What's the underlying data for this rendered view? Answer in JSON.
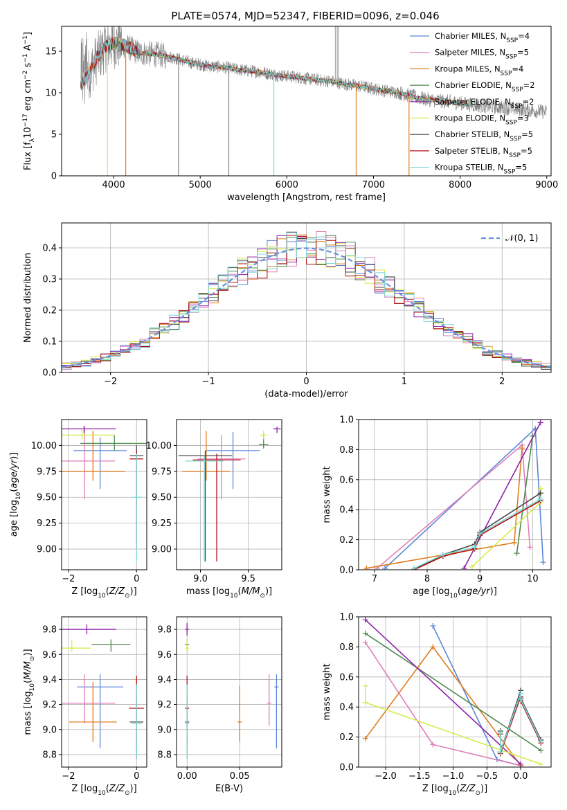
{
  "title": "PLATE=0574, MJD=52347, FIBERID=0096, z=0.046",
  "colors": {
    "chabrier_miles": "#5b86d8",
    "salpeter_miles": "#e07fb8",
    "kroupa_miles": "#e07b1f",
    "chabrier_elodie": "#4f8a4f",
    "salpeter_elodie": "#8e1fa8",
    "kroupa_elodie": "#d4ec4a",
    "chabrier_stelib": "#444444",
    "salpeter_stelib": "#b01010",
    "kroupa_stelib": "#7fd8d8",
    "data": "#808080",
    "normal_curve": "#6a8fe0"
  },
  "chart_data": [
    {
      "id": "spectrum",
      "type": "line",
      "xlabel": "wavelength [Angstrom, rest frame]",
      "ylabel": "Flux [f",
      "ylabel_parts": [
        "Flux [f",
        "λ",
        "10",
        "−17",
        " erg cm",
        "−2",
        " s",
        "−1",
        " A",
        "−1",
        "]"
      ],
      "xlim": [
        3400,
        9050
      ],
      "ylim": [
        0,
        18
      ],
      "xticks": [
        "4000",
        "5000",
        "6000",
        "7000",
        "8000",
        "9000"
      ],
      "xtick_values": [
        4000,
        5000,
        6000,
        7000,
        8000,
        9000
      ],
      "yticks": [
        "0",
        "5",
        "10",
        "15"
      ],
      "ytick_values": [
        0,
        5,
        10,
        15
      ],
      "grid": false,
      "legend_position": "top-right",
      "legend": [
        {
          "label": "Chabrier MILES, N",
          "sub": "SSP",
          "value": "=4",
          "color_key": "chabrier_miles"
        },
        {
          "label": "Salpeter MILES, N",
          "sub": "SSP",
          "value": "=5",
          "color_key": "salpeter_miles"
        },
        {
          "label": "Kroupa MILES, N",
          "sub": "SSP",
          "value": "=4",
          "color_key": "kroupa_miles"
        },
        {
          "label": "Chabrier ELODIE, N",
          "sub": "SSP",
          "value": "=2",
          "color_key": "chabrier_elodie"
        },
        {
          "label": "Salpeter ELODIE, N",
          "sub": "SSP",
          "value": "=2",
          "color_key": "salpeter_elodie"
        },
        {
          "label": "Kroupa ELODIE, N",
          "sub": "SSP",
          "value": "=3",
          "color_key": "kroupa_elodie"
        },
        {
          "label": "Chabrier STELIB, N",
          "sub": "SSP",
          "value": "=5",
          "color_key": "chabrier_stelib"
        },
        {
          "label": "Salpeter STELIB, N",
          "sub": "SSP",
          "value": "=5",
          "color_key": "salpeter_stelib"
        },
        {
          "label": "Kroupa STELIB, N",
          "sub": "SSP",
          "value": "=5",
          "color_key": "kroupa_stelib"
        }
      ],
      "continuum": {
        "x": [
          3620,
          3700,
          3800,
          3900,
          4000,
          4100,
          4200,
          4300,
          4500,
          4700,
          4900,
          5100,
          5300,
          5500,
          5700,
          5900,
          6100,
          6300,
          6500,
          6700,
          6900,
          7100,
          7300,
          7500,
          7700,
          7900,
          8100,
          8300,
          8500,
          8700,
          9000
        ],
        "y": [
          11.0,
          12.0,
          14.0,
          15.5,
          16.0,
          15.8,
          15.3,
          14.8,
          14.6,
          14.2,
          13.6,
          13.2,
          13.0,
          12.7,
          12.5,
          12.1,
          11.9,
          11.6,
          11.4,
          11.0,
          10.7,
          10.3,
          10.0,
          9.4,
          9.1,
          8.9,
          8.6,
          8.4,
          8.2,
          8.0,
          7.7
        ]
      },
      "absorption_features": [
        {
          "x": 3930,
          "y_min": 0.0,
          "color_key": "kroupa_elodie"
        },
        {
          "x": 4140,
          "y_min": 0.0,
          "color_key": "kroupa_miles"
        },
        {
          "x": 4750,
          "y_min": 0.0,
          "color_key": "data"
        },
        {
          "x": 5330,
          "y_min": 0.0,
          "color_key": "data"
        },
        {
          "x": 5850,
          "y_min": 0.0,
          "color_key": "kroupa_stelib"
        },
        {
          "x": 6800,
          "y_min": 0.0,
          "color_key": "kroupa_miles"
        },
        {
          "x": 7410,
          "y_min": 0.0,
          "color_key": "kroupa_miles"
        }
      ],
      "emission_features": [
        {
          "x": 6563,
          "y_max": 18.0
        },
        {
          "x": 6590,
          "y_max": 18.0
        }
      ]
    },
    {
      "id": "residuals",
      "type": "histogram",
      "xlabel": "(data-model)/error",
      "ylabel": "Normed distribution",
      "xlim": [
        -2.5,
        2.5
      ],
      "ylim": [
        0,
        0.48
      ],
      "xticks": [
        "−2",
        "−1",
        "0",
        "1",
        "2"
      ],
      "xtick_values": [
        -2,
        -1,
        0,
        1,
        2
      ],
      "yticks": [
        "0.0",
        "0.1",
        "0.2",
        "0.3",
        "0.4"
      ],
      "ytick_values": [
        0,
        0.1,
        0.2,
        0.3,
        0.4
      ],
      "grid": true,
      "legend_position": "top-right",
      "legend": [
        {
          "label": "𝒩(0, 1)",
          "color_key": "normal_curve",
          "style": "dashed"
        }
      ],
      "bin_width": 0.1,
      "bin_start": -2.5
    },
    {
      "id": "age_vs_Z",
      "type": "errorbar",
      "xlabel": "Z [log",
      "ylabel": "age  [log",
      "xlim": [
        -2.2,
        0.3
      ],
      "ylim": [
        8.8,
        10.25
      ],
      "xticks": [
        "−2",
        "0"
      ],
      "xtick_values": [
        -2,
        0
      ],
      "yticks": [
        "9.00",
        "9.25",
        "9.50",
        "9.75",
        "10.00"
      ],
      "ytick_values": [
        9.0,
        9.25,
        9.5,
        9.75,
        10.0
      ],
      "grid": true,
      "points": [
        {
          "x": -1.07,
          "xerr": 0.78,
          "y": 9.95,
          "y_lo": 9.58,
          "y_hi": 10.08,
          "color_key": "chabrier_miles"
        },
        {
          "x": -1.53,
          "xerr": 0.9,
          "y": 9.85,
          "y_lo": 9.48,
          "y_hi": 10.18,
          "color_key": "salpeter_miles"
        },
        {
          "x": -1.28,
          "xerr": 0.95,
          "y": 9.75,
          "y_lo": 9.66,
          "y_hi": 10.14,
          "color_key": "kroupa_miles"
        },
        {
          "x": -0.65,
          "xerr": 1.0,
          "y": 10.02,
          "y_lo": 9.95,
          "y_hi": 10.1,
          "color_key": "chabrier_elodie"
        },
        {
          "x": -1.54,
          "xerr": 0.93,
          "y": 10.16,
          "y_lo": 10.12,
          "y_hi": 10.19,
          "color_key": "salpeter_elodie"
        },
        {
          "x": -1.6,
          "xerr": 0.95,
          "y": 10.1,
          "y_lo": 10.06,
          "y_hi": 10.15,
          "color_key": "kroupa_elodie"
        },
        {
          "x": 0.0,
          "xerr": 0.2,
          "y": 9.9,
          "y_lo": 9.4,
          "y_hi": 10.0,
          "color_key": "chabrier_stelib"
        },
        {
          "x": 0.0,
          "xerr": 0.2,
          "y": 9.87,
          "y_lo": 9.0,
          "y_hi": 9.95,
          "color_key": "salpeter_stelib"
        },
        {
          "x": 0.0,
          "xerr": 0.15,
          "y": 9.5,
          "y_lo": 8.88,
          "y_hi": 9.92,
          "color_key": "kroupa_stelib"
        }
      ]
    },
    {
      "id": "age_vs_mass",
      "type": "errorbar",
      "xlabel": "mass [log",
      "xlim": [
        8.75,
        9.85
      ],
      "ylim": [
        8.8,
        10.25
      ],
      "xticks": [
        "9.0",
        "9.5"
      ],
      "xtick_values": [
        9.0,
        9.5
      ],
      "yticks": [
        "9.00",
        "9.25",
        "9.50",
        "9.75",
        "10.00"
      ],
      "ytick_values": [
        9.0,
        9.25,
        9.5,
        9.75,
        10.0
      ],
      "grid": true,
      "points": [
        {
          "x": 9.34,
          "xerr": 0.28,
          "y": 9.95,
          "y_lo": 9.58,
          "y_hi": 10.13,
          "color_key": "chabrier_miles"
        },
        {
          "x": 9.22,
          "xerr": 0.25,
          "y": 9.87,
          "y_lo": 9.48,
          "y_hi": 10.1,
          "color_key": "salpeter_miles"
        },
        {
          "x": 9.06,
          "xerr": 0.25,
          "y": 9.75,
          "y_lo": 9.66,
          "y_hi": 10.14,
          "color_key": "kroupa_miles"
        },
        {
          "x": 9.66,
          "xerr": 0.05,
          "y": 10.01,
          "y_lo": 9.97,
          "y_hi": 10.12,
          "color_key": "chabrier_elodie"
        },
        {
          "x": 9.8,
          "xerr": 0.04,
          "y": 10.16,
          "y_lo": 10.12,
          "y_hi": 10.18,
          "color_key": "salpeter_elodie"
        },
        {
          "x": 9.66,
          "xerr": 0.04,
          "y": 10.1,
          "y_lo": 10.06,
          "y_hi": 10.14,
          "color_key": "kroupa_elodie"
        },
        {
          "x": 9.05,
          "xerr": 0.28,
          "y": 9.9,
          "y_lo": 8.88,
          "y_hi": 9.95,
          "color_key": "chabrier_stelib"
        },
        {
          "x": 9.17,
          "xerr": 0.25,
          "y": 9.86,
          "y_lo": 8.88,
          "y_hi": 9.92,
          "color_key": "salpeter_stelib"
        },
        {
          "x": 9.04,
          "xerr": 0.2,
          "y": 9.85,
          "y_lo": 8.88,
          "y_hi": 9.9,
          "color_key": "kroupa_stelib"
        }
      ]
    },
    {
      "id": "massweight_vs_age",
      "type": "line",
      "xlabel": "age  [log",
      "ylabel": "mass weight",
      "xlim": [
        6.7,
        10.35
      ],
      "ylim": [
        0,
        1
      ],
      "xticks": [
        "7",
        "8",
        "9",
        "10"
      ],
      "xtick_values": [
        7,
        8,
        9,
        10
      ],
      "yticks": [
        "0.0",
        "0.2",
        "0.4",
        "0.6",
        "0.8",
        "1.0"
      ],
      "ytick_values": [
        0,
        0.2,
        0.4,
        0.6,
        0.8,
        1.0
      ],
      "grid": true,
      "series": [
        {
          "color_key": "chabrier_miles",
          "x": [
            7.2,
            10.05,
            10.2
          ],
          "y": [
            0.01,
            0.94,
            0.05
          ]
        },
        {
          "color_key": "salpeter_miles",
          "x": [
            7.05,
            9.8,
            9.95
          ],
          "y": [
            0.01,
            0.83,
            0.15
          ]
        },
        {
          "color_key": "kroupa_miles",
          "x": [
            6.85,
            9.65,
            9.8
          ],
          "y": [
            0.01,
            0.18,
            0.81
          ]
        },
        {
          "color_key": "chabrier_elodie",
          "x": [
            9.7,
            10.0
          ],
          "y": [
            0.11,
            0.89
          ]
        },
        {
          "color_key": "salpeter_elodie",
          "x": [
            8.7,
            10.15
          ],
          "y": [
            0.01,
            0.98
          ]
        },
        {
          "color_key": "kroupa_elodie",
          "x": [
            8.85,
            10.15,
            10.15
          ],
          "y": [
            0.02,
            0.45,
            0.54
          ]
        },
        {
          "color_key": "chabrier_stelib",
          "x": [
            7.75,
            8.3,
            8.9,
            9.0,
            10.15
          ],
          "y": [
            0.0,
            0.1,
            0.17,
            0.25,
            0.51
          ]
        },
        {
          "color_key": "salpeter_stelib",
          "x": [
            7.75,
            8.3,
            8.9,
            9.0,
            10.15
          ],
          "y": [
            0.0,
            0.09,
            0.14,
            0.23,
            0.46
          ]
        },
        {
          "color_key": "kroupa_stelib",
          "x": [
            7.75,
            8.3,
            8.9,
            9.0,
            10.15
          ],
          "y": [
            0.01,
            0.1,
            0.15,
            0.24,
            0.47
          ]
        }
      ]
    },
    {
      "id": "mass_vs_Z",
      "type": "errorbar",
      "xlabel": "Z [log",
      "ylabel": "mass [log",
      "xlim": [
        -2.2,
        0.3
      ],
      "ylim": [
        8.7,
        9.9
      ],
      "xticks": [
        "−2",
        "0"
      ],
      "xtick_values": [
        -2,
        0
      ],
      "yticks": [
        "8.8",
        "9.0",
        "9.2",
        "9.4",
        "9.6",
        "9.8"
      ],
      "ytick_values": [
        8.8,
        9.0,
        9.2,
        9.4,
        9.6,
        9.8
      ],
      "grid": true,
      "points": [
        {
          "x": -1.07,
          "xerr": 0.68,
          "y": 9.34,
          "y_lo": 8.85,
          "y_hi": 9.44,
          "color_key": "chabrier_miles"
        },
        {
          "x": -1.53,
          "xerr": 0.9,
          "y": 9.21,
          "y_lo": 9.05,
          "y_hi": 9.44,
          "color_key": "salpeter_miles"
        },
        {
          "x": -1.28,
          "xerr": 0.7,
          "y": 9.06,
          "y_lo": 8.9,
          "y_hi": 9.38,
          "color_key": "kroupa_miles"
        },
        {
          "x": -0.75,
          "xerr": 0.57,
          "y": 9.68,
          "y_lo": 9.62,
          "y_hi": 9.72,
          "color_key": "chabrier_elodie"
        },
        {
          "x": -1.46,
          "xerr": 0.86,
          "y": 9.8,
          "y_lo": 9.76,
          "y_hi": 9.84,
          "color_key": "salpeter_elodie"
        },
        {
          "x": -1.9,
          "xerr": 0.55,
          "y": 9.65,
          "y_lo": 9.62,
          "y_hi": 9.72,
          "color_key": "kroupa_elodie"
        },
        {
          "x": 0.0,
          "xerr": 0.2,
          "y": 9.06,
          "y_lo": 8.77,
          "y_hi": 9.3,
          "color_key": "chabrier_stelib"
        },
        {
          "x": 0.0,
          "xerr": 0.22,
          "y": 9.17,
          "y_lo": 8.87,
          "y_hi": 9.43,
          "color_key": "salpeter_stelib"
        },
        {
          "x": 0.0,
          "xerr": 0.15,
          "y": 9.05,
          "y_lo": 8.77,
          "y_hi": 9.36,
          "color_key": "kroupa_stelib"
        }
      ]
    },
    {
      "id": "mass_vs_ebv",
      "type": "errorbar",
      "xlabel": "E(B-V)",
      "xlim": [
        -0.01,
        0.09
      ],
      "ylim": [
        8.7,
        9.9
      ],
      "xticks": [
        "0.00",
        "0.05"
      ],
      "xtick_values": [
        0.0,
        0.05
      ],
      "yticks": [
        "8.8",
        "9.0",
        "9.2",
        "9.4",
        "9.6",
        "9.8"
      ],
      "ytick_values": [
        8.8,
        9.0,
        9.2,
        9.4,
        9.6,
        9.8
      ],
      "grid": true,
      "points": [
        {
          "x": 0.085,
          "y": 9.34,
          "y_lo": 8.85,
          "y_hi": 9.44,
          "color_key": "chabrier_miles"
        },
        {
          "x": 0.078,
          "y": 9.21,
          "y_lo": 9.03,
          "y_hi": 9.44,
          "color_key": "salpeter_miles"
        },
        {
          "x": 0.05,
          "y": 9.06,
          "y_lo": 8.9,
          "y_hi": 9.35,
          "color_key": "kroupa_miles"
        },
        {
          "x": 0.0,
          "y": 9.68,
          "y_lo": 9.62,
          "y_hi": 9.72,
          "color_key": "chabrier_elodie"
        },
        {
          "x": 0.0,
          "y": 9.8,
          "y_lo": 9.75,
          "y_hi": 9.85,
          "color_key": "salpeter_elodie"
        },
        {
          "x": 0.0,
          "y": 9.65,
          "y_lo": 9.62,
          "y_hi": 9.72,
          "color_key": "kroupa_elodie"
        },
        {
          "x": 0.0,
          "y": 9.06,
          "y_lo": 8.77,
          "y_hi": 9.3,
          "color_key": "chabrier_stelib"
        },
        {
          "x": 0.0,
          "y": 9.17,
          "y_lo": 8.87,
          "y_hi": 9.43,
          "color_key": "salpeter_stelib"
        },
        {
          "x": 0.0,
          "y": 9.05,
          "y_lo": 8.77,
          "y_hi": 9.36,
          "color_key": "kroupa_stelib"
        }
      ]
    },
    {
      "id": "massweight_vs_Z",
      "type": "line",
      "xlabel": "Z [log",
      "ylabel": "mass weight",
      "xlim": [
        -2.4,
        0.45
      ],
      "ylim": [
        0,
        1
      ],
      "xticks": [
        "−2.0",
        "−1.5",
        "−1.0",
        "−0.5",
        "0.0"
      ],
      "xtick_values": [
        -2.0,
        -1.5,
        -1.0,
        -0.5,
        0.0
      ],
      "yticks": [
        "0.0",
        "0.2",
        "0.4",
        "0.6",
        "0.8",
        "1.0"
      ],
      "ytick_values": [
        0,
        0.2,
        0.4,
        0.6,
        0.8,
        1.0
      ],
      "grid": true,
      "series": [
        {
          "color_key": "chabrier_miles",
          "x": [
            -1.3,
            -0.35,
            0.0
          ],
          "y": [
            0.94,
            0.05,
            0.01
          ]
        },
        {
          "color_key": "salpeter_miles",
          "x": [
            -2.3,
            -1.3,
            0.0
          ],
          "y": [
            0.83,
            0.15,
            0.01
          ]
        },
        {
          "color_key": "kroupa_miles",
          "x": [
            -2.3,
            -1.3,
            0.0
          ],
          "y": [
            0.19,
            0.8,
            0.01
          ]
        },
        {
          "color_key": "chabrier_elodie",
          "x": [
            -2.3,
            0.3
          ],
          "y": [
            0.89,
            0.11
          ]
        },
        {
          "color_key": "salpeter_elodie",
          "x": [
            -2.3,
            0.0
          ],
          "y": [
            0.98,
            0.02
          ]
        },
        {
          "color_key": "kroupa_elodie",
          "x": [
            -2.3,
            -2.3,
            0.3
          ],
          "y": [
            0.54,
            0.43,
            0.02
          ]
        },
        {
          "color_key": "chabrier_stelib",
          "x": [
            -0.3,
            -0.3,
            0.0,
            0.0,
            0.3
          ],
          "y": [
            0.24,
            0.1,
            0.51,
            0.46,
            0.18
          ]
        },
        {
          "color_key": "salpeter_stelib",
          "x": [
            -0.3,
            -0.3,
            0.0,
            0.0,
            0.3
          ],
          "y": [
            0.22,
            0.09,
            0.47,
            0.44,
            0.16
          ]
        },
        {
          "color_key": "kroupa_stelib",
          "x": [
            -0.3,
            -0.3,
            0.0,
            0.0,
            0.3
          ],
          "y": [
            0.23,
            0.1,
            0.49,
            0.45,
            0.17
          ]
        }
      ]
    }
  ]
}
